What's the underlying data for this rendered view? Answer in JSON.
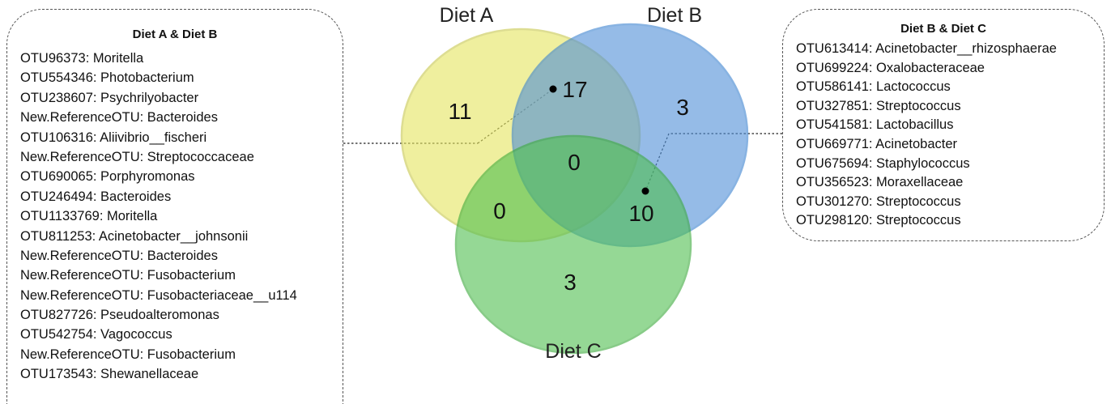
{
  "venn": {
    "sets": [
      {
        "name": "Diet A",
        "color": "#e6e65e"
      },
      {
        "name": "Diet B",
        "color": "#4f8fd8"
      },
      {
        "name": "Diet C",
        "color": "#4fbf4f"
      }
    ],
    "counts": {
      "A_only": "11",
      "B_only": "3",
      "C_only": "3",
      "A_B": "17",
      "A_C": "0",
      "B_C": "10",
      "A_B_C": "0"
    }
  },
  "panel_ab": {
    "title": "Diet A & Diet B",
    "items": [
      "OTU96373: Moritella",
      "OTU554346: Photobacterium",
      "OTU238607: Psychrilyobacter",
      "New.ReferenceOTU: Bacteroides",
      "OTU106316: Aliivibrio__fischeri",
      "New.ReferenceOTU: Streptococcaceae",
      "OTU690065: Porphyromonas",
      "OTU246494: Bacteroides",
      "OTU1133769: Moritella",
      "OTU811253: Acinetobacter__johnsonii",
      "New.ReferenceOTU: Bacteroides",
      "New.ReferenceOTU: Fusobacterium",
      "New.ReferenceOTU: Fusobacteriaceae__u114",
      "OTU827726: Pseudoalteromonas",
      "OTU542754: Vagococcus",
      "New.ReferenceOTU: Fusobacterium",
      "OTU173543: Shewanellaceae"
    ]
  },
  "panel_bc": {
    "title": "Diet B & Diet C",
    "items": [
      "OTU613414: Acinetobacter__rhizosphaerae",
      "OTU699224: Oxalobacteraceae",
      "OTU586141: Lactococcus",
      "OTU327851: Streptococcus",
      "OTU541581: Lactobacillus",
      "OTU669771: Acinetobacter",
      "OTU675694: Staphylococcus",
      "OTU356523: Moraxellaceae",
      "OTU301270: Streptococcus",
      "OTU298120: Streptococcus"
    ]
  }
}
